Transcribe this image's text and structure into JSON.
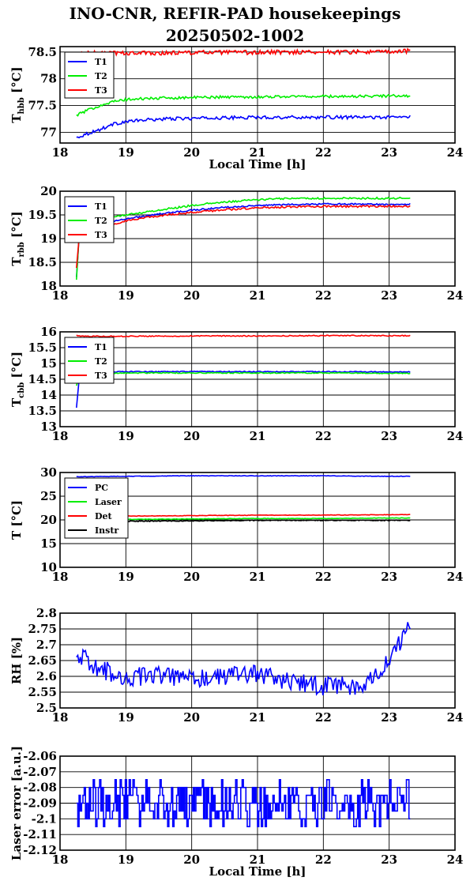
{
  "title": {
    "line1": "INO-CNR, REFIR-PAD housekeepings",
    "line2": "20250502-1002"
  },
  "colors": {
    "blue": "#0000ff",
    "green": "#00ee00",
    "red": "#ff0000",
    "black": "#000000"
  },
  "chart_data": [
    {
      "type": "line",
      "ylabel_main": "T",
      "ylabel_sub": "hbb",
      "ylabel_unit": "[°C]",
      "xlabel": "Local Time [h]",
      "xlim": [
        18,
        24
      ],
      "ylim": [
        76.8,
        78.6
      ],
      "xticks": [
        "18",
        "19",
        "20",
        "21",
        "22",
        "23",
        "24"
      ],
      "yticks": [
        "77",
        "77.5",
        "78",
        "78.5"
      ],
      "ytick_values": [
        77,
        77.5,
        78,
        78.5
      ],
      "grid": true,
      "legend": "top-left",
      "series": [
        {
          "name": "T1",
          "color": "#0000ff",
          "x": [
            18.25,
            18.4,
            18.6,
            18.8,
            19.0,
            19.3,
            19.6,
            20.0,
            20.5,
            21.0,
            21.5,
            22.0,
            22.5,
            23.0,
            23.32
          ],
          "y": [
            76.9,
            76.97,
            77.05,
            77.15,
            77.2,
            77.23,
            77.25,
            77.26,
            77.27,
            77.28,
            77.28,
            77.28,
            77.28,
            77.28,
            77.29
          ]
        },
        {
          "name": "T2",
          "color": "#00ee00",
          "x": [
            18.25,
            18.4,
            18.6,
            18.8,
            19.0,
            19.3,
            19.6,
            20.0,
            20.5,
            21.0,
            21.5,
            22.0,
            22.5,
            23.0,
            23.32
          ],
          "y": [
            77.32,
            77.4,
            77.5,
            77.57,
            77.61,
            77.63,
            77.64,
            77.65,
            77.66,
            77.66,
            77.67,
            77.67,
            77.67,
            77.68,
            77.68
          ]
        },
        {
          "name": "T3",
          "color": "#ff0000",
          "x": [
            18.25,
            18.5,
            19.0,
            19.5,
            20.0,
            20.5,
            21.0,
            21.5,
            22.0,
            22.5,
            23.0,
            23.32
          ],
          "y": [
            78.47,
            78.48,
            78.48,
            78.48,
            78.49,
            78.49,
            78.49,
            78.5,
            78.5,
            78.5,
            78.5,
            78.52
          ]
        }
      ],
      "noise": [
        0.03,
        0.025,
        0.04
      ]
    },
    {
      "type": "line",
      "ylabel_main": "T",
      "ylabel_sub": "rbb",
      "ylabel_unit": "[°C]",
      "xlabel": "",
      "xlim": [
        18,
        24
      ],
      "ylim": [
        18,
        20
      ],
      "xticks": [
        "18",
        "19",
        "20",
        "21",
        "22",
        "23",
        "24"
      ],
      "yticks": [
        "18",
        "18.5",
        "19",
        "19.5",
        "20"
      ],
      "ytick_values": [
        18,
        18.5,
        19,
        19.5,
        20
      ],
      "grid": true,
      "legend": "top-left",
      "series": [
        {
          "name": "T1",
          "color": "#0000ff",
          "x": [
            18.25,
            18.3,
            18.5,
            18.8,
            19.0,
            19.5,
            20.0,
            20.5,
            21.0,
            21.5,
            22.0,
            22.5,
            23.0,
            23.32
          ],
          "y": [
            18.2,
            19.25,
            19.3,
            19.36,
            19.42,
            19.52,
            19.6,
            19.66,
            19.7,
            19.72,
            19.73,
            19.73,
            19.72,
            19.73
          ]
        },
        {
          "name": "T2",
          "color": "#00ee00",
          "x": [
            18.25,
            18.3,
            18.5,
            18.8,
            19.0,
            19.5,
            20.0,
            20.5,
            21.0,
            21.5,
            22.0,
            22.5,
            23.0,
            23.32
          ],
          "y": [
            18.15,
            19.3,
            19.38,
            19.45,
            19.5,
            19.6,
            19.7,
            19.77,
            19.82,
            19.85,
            19.85,
            19.85,
            19.85,
            19.86
          ]
        },
        {
          "name": "T3",
          "color": "#ff0000",
          "x": [
            18.25,
            18.3,
            18.5,
            18.8,
            19.0,
            19.5,
            20.0,
            20.5,
            21.0,
            21.5,
            22.0,
            22.5,
            23.0,
            23.32
          ],
          "y": [
            18.4,
            19.2,
            19.25,
            19.3,
            19.38,
            19.48,
            19.55,
            19.61,
            19.65,
            19.67,
            19.68,
            19.68,
            19.68,
            19.68
          ]
        }
      ],
      "noise": [
        0.015,
        0.02,
        0.02
      ]
    },
    {
      "type": "line",
      "ylabel_main": "T",
      "ylabel_sub": "cbb",
      "ylabel_unit": "[°C]",
      "xlabel": "",
      "xlim": [
        18,
        24
      ],
      "ylim": [
        13,
        16
      ],
      "xticks": [
        "18",
        "19",
        "20",
        "21",
        "22",
        "23",
        "24"
      ],
      "yticks": [
        "13",
        "13.5",
        "14",
        "14.5",
        "15",
        "15.5",
        "16"
      ],
      "ytick_values": [
        13,
        13.5,
        14,
        14.5,
        15,
        15.5,
        16
      ],
      "grid": true,
      "legend": "top-left",
      "series": [
        {
          "name": "T1",
          "color": "#0000ff",
          "x": [
            18.25,
            18.3,
            18.5,
            19.0,
            20.0,
            21.0,
            22.0,
            23.0,
            23.32
          ],
          "y": [
            13.6,
            14.72,
            14.73,
            14.74,
            14.74,
            14.74,
            14.74,
            14.73,
            14.73
          ]
        },
        {
          "name": "T2",
          "color": "#00ee00",
          "x": [
            18.25,
            18.3,
            18.5,
            19.0,
            20.0,
            21.0,
            22.0,
            23.0,
            23.32
          ],
          "y": [
            14.3,
            14.68,
            14.69,
            14.7,
            14.7,
            14.7,
            14.7,
            14.69,
            14.69
          ]
        },
        {
          "name": "T3",
          "color": "#ff0000",
          "x": [
            18.25,
            18.3,
            18.5,
            19.0,
            20.0,
            21.0,
            22.0,
            23.0,
            23.32
          ],
          "y": [
            15.9,
            15.86,
            15.86,
            15.86,
            15.87,
            15.87,
            15.88,
            15.88,
            15.88
          ]
        }
      ],
      "noise": [
        0.015,
        0.015,
        0.015
      ]
    },
    {
      "type": "line",
      "ylabel_main": "T [°C]",
      "ylabel_sub": "",
      "ylabel_unit": "",
      "xlabel": "",
      "xlim": [
        18,
        24
      ],
      "ylim": [
        10,
        30
      ],
      "xticks": [
        "18",
        "19",
        "20",
        "21",
        "22",
        "23",
        "24"
      ],
      "yticks": [
        "10",
        "15",
        "20",
        "25",
        "30"
      ],
      "ytick_values": [
        10,
        15,
        20,
        25,
        30
      ],
      "grid": true,
      "legend": "top-left",
      "series": [
        {
          "name": "PC",
          "color": "#0000ff",
          "x": [
            18.25,
            19.0,
            20.0,
            21.0,
            22.0,
            23.0,
            23.32
          ],
          "y": [
            29.1,
            29.2,
            29.3,
            29.3,
            29.3,
            29.2,
            29.2
          ]
        },
        {
          "name": "Laser",
          "color": "#00ee00",
          "x": [
            18.25,
            19.0,
            20.0,
            21.0,
            22.0,
            23.0,
            23.32
          ],
          "y": [
            20.0,
            20.1,
            20.2,
            20.3,
            20.3,
            20.4,
            20.4
          ]
        },
        {
          "name": "Det",
          "color": "#ff0000",
          "x": [
            18.25,
            19.0,
            20.0,
            21.0,
            22.0,
            23.0,
            23.32
          ],
          "y": [
            20.7,
            20.8,
            20.9,
            21.0,
            21.0,
            21.1,
            21.1
          ]
        },
        {
          "name": "Instr",
          "color": "#000000",
          "x": [
            18.25,
            19.0,
            20.0,
            21.0,
            22.0,
            23.0,
            23.32
          ],
          "y": [
            19.6,
            19.7,
            19.8,
            19.9,
            19.9,
            19.9,
            19.9
          ]
        }
      ],
      "noise": [
        0.05,
        0.05,
        0.05,
        0.08
      ]
    },
    {
      "type": "line",
      "ylabel_main": "RH [%]",
      "ylabel_sub": "",
      "ylabel_unit": "",
      "xlabel": "",
      "xlim": [
        18,
        24
      ],
      "ylim": [
        2.5,
        2.8
      ],
      "xticks": [
        "18",
        "19",
        "20",
        "21",
        "22",
        "23",
        "24"
      ],
      "yticks": [
        "2.5",
        "2.55",
        "2.6",
        "2.65",
        "2.7",
        "2.75",
        "2.8"
      ],
      "ytick_values": [
        2.5,
        2.55,
        2.6,
        2.65,
        2.7,
        2.75,
        2.8
      ],
      "grid": true,
      "legend": "none",
      "series": [
        {
          "name": "",
          "color": "#0000ff",
          "x": [
            18.25,
            18.5,
            18.8,
            19.0,
            19.5,
            20.0,
            20.5,
            21.0,
            21.5,
            22.0,
            22.5,
            22.8,
            23.0,
            23.2,
            23.32
          ],
          "y": [
            2.68,
            2.63,
            2.61,
            2.6,
            2.6,
            2.59,
            2.6,
            2.61,
            2.58,
            2.57,
            2.57,
            2.6,
            2.65,
            2.72,
            2.77
          ]
        }
      ],
      "noise": [
        0.03
      ]
    },
    {
      "type": "line",
      "ylabel_main": "Laser error [a.u.]",
      "ylabel_sub": "",
      "ylabel_unit": "",
      "xlabel": "Local Time [h]",
      "xlim": [
        18,
        24
      ],
      "ylim": [
        -2.12,
        -2.06
      ],
      "xticks": [
        "18",
        "19",
        "20",
        "21",
        "22",
        "23",
        "24"
      ],
      "yticks": [
        "-2.12",
        "-2.11",
        "-2.1",
        "-2.09",
        "-2.08",
        "-2.07",
        "-2.06"
      ],
      "ytick_values": [
        -2.12,
        -2.11,
        -2.1,
        -2.09,
        -2.08,
        -2.07,
        -2.06
      ],
      "grid": true,
      "legend": "none",
      "series": [
        {
          "name": "",
          "color": "#0000ff",
          "x": [
            18.25,
            23.32
          ],
          "y": [
            -2.09,
            -2.09
          ]
        }
      ],
      "noise": [
        0.015
      ],
      "quantized": 0.005
    }
  ]
}
